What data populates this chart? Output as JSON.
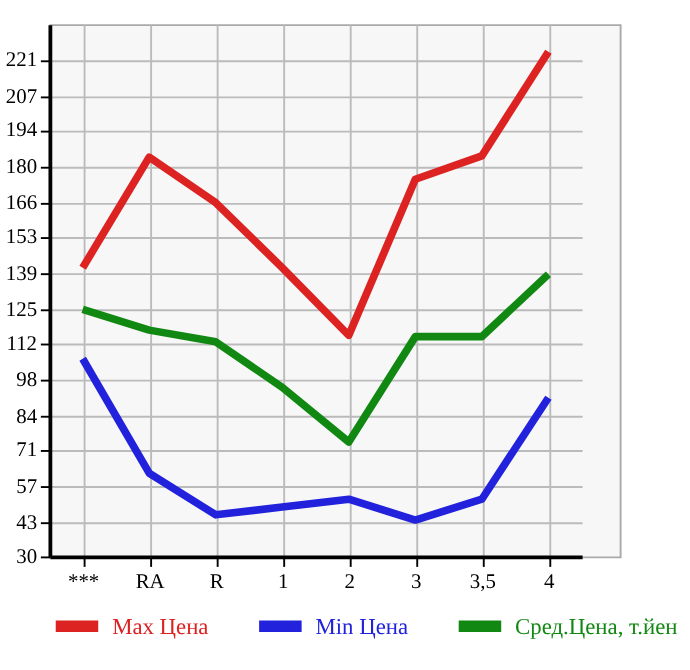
{
  "chart_data": {
    "type": "line",
    "categories": [
      "***",
      "RA",
      "R",
      "1",
      "2",
      "3",
      "3,5",
      "4"
    ],
    "series": [
      {
        "name": "Max Цена",
        "color": "#dd2222",
        "values": [
          141,
          183.5,
          166,
          141,
          115,
          175,
          184,
          224
        ]
      },
      {
        "name": "Min Цена",
        "color": "#2222dd",
        "values": [
          106,
          62,
          46,
          49,
          52,
          44,
          52,
          91
        ]
      },
      {
        "name": "Сред.Цена, т.йен",
        "color": "#118811",
        "values": [
          125,
          117,
          112.5,
          95,
          74,
          114.5,
          114.5,
          138.5
        ]
      }
    ],
    "ylim": [
      30,
      234.6
    ],
    "yticks": [
      30,
      43,
      57,
      71,
      84,
      98,
      112,
      125,
      139,
      153,
      166,
      180,
      194,
      207,
      221
    ],
    "grid": true,
    "legend": "bottom",
    "marker": "none",
    "line_style": "solid"
  }
}
